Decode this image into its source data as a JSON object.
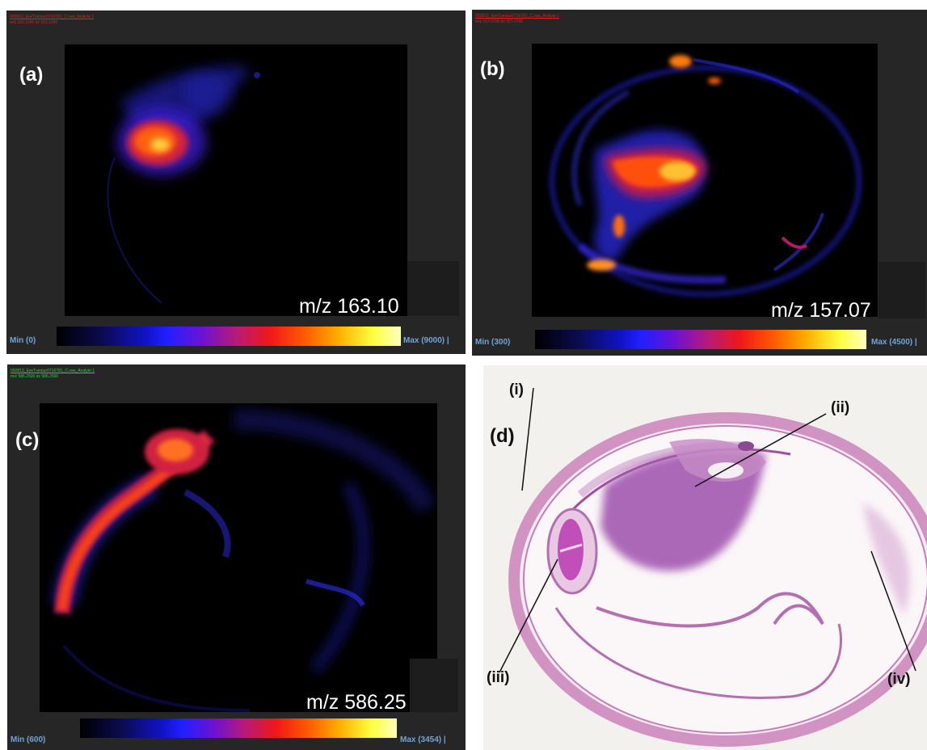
{
  "colors": {
    "panel_bg": "#262626",
    "header_red": "#e02020",
    "header_green": "#2fd42f",
    "scale_label": "#6fa4d6",
    "annotation": "#111111"
  },
  "panels": [
    {
      "id": "a",
      "tag": "(a)",
      "header_line1": "050813_EyeTumour0716781_C.raw_Analyte 1",
      "header_line2": "m/z 163.1000 dz 163.1000",
      "mz_label": "m/z 163.10",
      "min_label": "Min (0)",
      "max_label": "Max (9000) |"
    },
    {
      "id": "b",
      "tag": "(b)",
      "header_line1": "050813_EyeTumour0716781_C.raw_Analyte 1",
      "header_line2": "m/z 157.0700 dz 157.0700",
      "mz_label": "m/z 157.07",
      "min_label": "Min (300)",
      "max_label": "Max (4500) |"
    },
    {
      "id": "c",
      "tag": "(c)",
      "header_line1": "050813_EyeTumour0716781_C.raw_Analyte 1",
      "header_line2": "m/z 586.2500 dz 586.2500",
      "mz_label": "m/z 586.25",
      "min_label": "Min (600)",
      "max_label": "Max (3454) |"
    }
  ],
  "histology": {
    "tag": "(d)",
    "annotations": [
      "(i)",
      "(ii)",
      "(iii)",
      "(iv)"
    ]
  }
}
